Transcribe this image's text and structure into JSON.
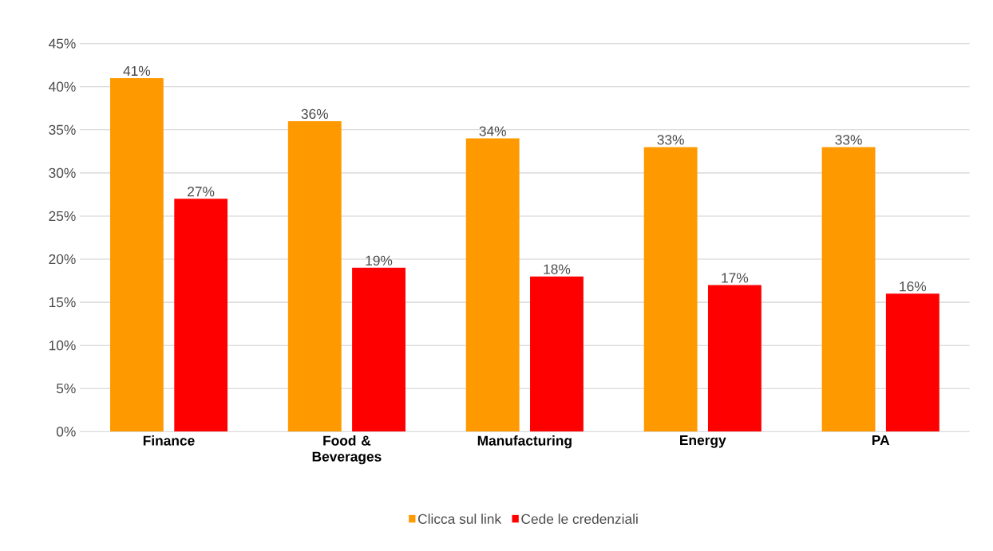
{
  "chart_data": {
    "type": "bar",
    "categories": [
      "Finance",
      "Food & Beverages",
      "Manufacturing",
      "Energy",
      "PA"
    ],
    "series": [
      {
        "name": "Clicca sul link",
        "color": "#ff9900",
        "values": [
          41,
          36,
          34,
          33,
          33
        ],
        "value_labels": [
          "41%",
          "36%",
          "34%",
          "33%",
          "33%"
        ]
      },
      {
        "name": "Cede le credenziali",
        "color": "#ff0000",
        "values": [
          27,
          19,
          18,
          17,
          16
        ],
        "value_labels": [
          "27%",
          "19%",
          "18%",
          "17%",
          "16%"
        ]
      }
    ],
    "ylim": [
      0,
      45
    ],
    "yticks": [
      {
        "value": 0,
        "label": "0%"
      },
      {
        "value": 5,
        "label": "5%"
      },
      {
        "value": 10,
        "label": "10%"
      },
      {
        "value": 15,
        "label": "15%"
      },
      {
        "value": 20,
        "label": "20%"
      },
      {
        "value": 25,
        "label": "25%"
      },
      {
        "value": 30,
        "label": "30%"
      },
      {
        "value": 35,
        "label": "35%"
      },
      {
        "value": 40,
        "label": "40%"
      },
      {
        "value": 45,
        "label": "45%"
      }
    ],
    "grid": "y",
    "legend": "bottom"
  }
}
